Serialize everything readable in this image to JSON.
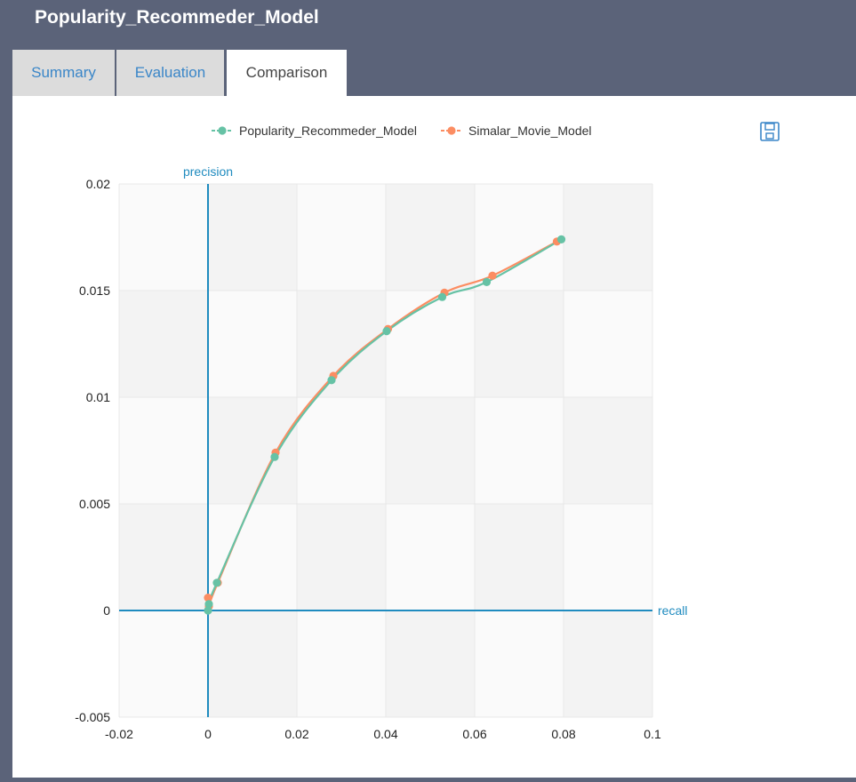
{
  "app": {
    "title": "Popularity_Recommeder_Model"
  },
  "tabs": [
    {
      "label": "Summary",
      "active": false
    },
    {
      "label": "Evaluation",
      "active": false
    },
    {
      "label": "Comparison",
      "active": true
    }
  ],
  "toolbar": {
    "save_icon": "floppy-disk-icon"
  },
  "colors": {
    "series_a": "#66c2a5",
    "series_b": "#fc8d62",
    "axis": "#1f8bbf",
    "band_dark": "#f3f3f3",
    "band_light": "#fafafa"
  },
  "chart_data": {
    "type": "line",
    "title": "",
    "xlabel": "recall",
    "ylabel": "precision",
    "xlim": [
      -0.02,
      0.1
    ],
    "ylim": [
      -0.005,
      0.02
    ],
    "xticks": [
      "-0.02",
      "0",
      "0.02",
      "0.04",
      "0.06",
      "0.08",
      "0.1"
    ],
    "yticks": [
      "-0.005",
      "0",
      "0.005",
      "0.01",
      "0.015",
      "0.02"
    ],
    "grid": true,
    "legend_position": "top-center",
    "series": [
      {
        "name": "Popularity_Recommeder_Model",
        "color": "#66c2a5",
        "points": [
          [
            0,
            0
          ],
          [
            0.0002,
            0.0003
          ],
          [
            0.002,
            0.0013
          ],
          [
            0.015,
            0.0072
          ],
          [
            0.0278,
            0.0108
          ],
          [
            0.0402,
            0.0131
          ],
          [
            0.0527,
            0.0147
          ],
          [
            0.0627,
            0.0154
          ],
          [
            0.0795,
            0.0174
          ]
        ]
      },
      {
        "name": "Simalar_Movie_Model",
        "color": "#fc8d62",
        "points": [
          [
            0,
            0.0006
          ],
          [
            0.0002,
            0.0002
          ],
          [
            0.0022,
            0.0013
          ],
          [
            0.0152,
            0.0074
          ],
          [
            0.0282,
            0.011
          ],
          [
            0.0405,
            0.0132
          ],
          [
            0.0532,
            0.0149
          ],
          [
            0.064,
            0.0157
          ],
          [
            0.0785,
            0.0173
          ]
        ]
      }
    ]
  }
}
